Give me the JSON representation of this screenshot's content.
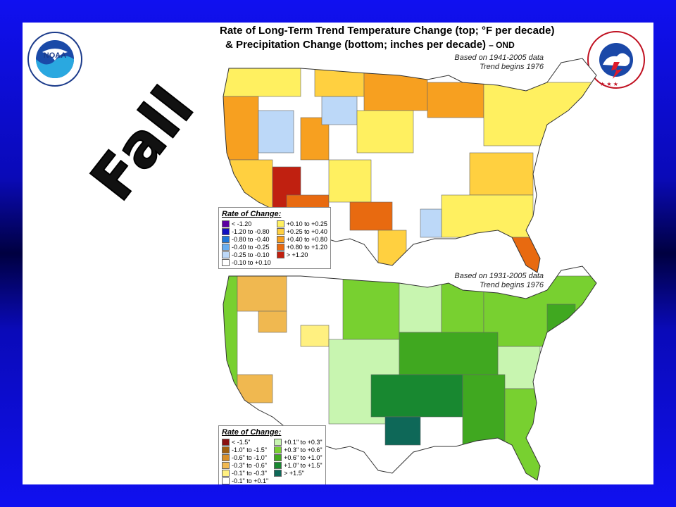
{
  "title_line1": "Rate of Long-Term Trend Temperature Change (top; °F per decade)",
  "title_line2": "&  Precipitation Change (bottom; inches per decade)",
  "title_suffix": "– OND",
  "side_label": "Fall",
  "logos": {
    "noaa": {
      "center_text": "NOAA",
      "ring_top": "NATIONAL OCEANIC AND ATMOSPHERIC ADMINISTRATION",
      "ring_bottom": "U.S. DEPARTMENT OF COMMERCE"
    },
    "nws": {
      "ring_text": "NATIONAL WEATHER SERVICE"
    }
  },
  "temperature_map": {
    "basis_line1": "Based on 1941-2005 data",
    "basis_line2": "Trend begins 1976",
    "legend_title": "Rate of Change:",
    "legend_left": [
      {
        "label": "< -1.20",
        "color": "#5a00a0"
      },
      {
        "label": "-1.20 to -0.80",
        "color": "#1010c0"
      },
      {
        "label": "-0.80 to -0.40",
        "color": "#1e78d8"
      },
      {
        "label": "-0.40 to -0.25",
        "color": "#68aef0"
      },
      {
        "label": "-0.25 to -0.10",
        "color": "#bcd8f8"
      },
      {
        "label": "-0.10 to +0.10",
        "color": "#ffffff"
      }
    ],
    "legend_right": [
      {
        "label": "+0.10 to +0.25",
        "color": "#fff060"
      },
      {
        "label": "+0.25 to +0.40",
        "color": "#ffd040"
      },
      {
        "label": "+0.40 to +0.80",
        "color": "#f7a020"
      },
      {
        "label": "+0.80 to +1.20",
        "color": "#e86a10"
      },
      {
        "label": "> +1.20",
        "color": "#c02010"
      }
    ]
  },
  "precipitation_map": {
    "basis_line1": "Based on 1931-2005 data",
    "basis_line2": "Trend begins 1976",
    "legend_title": "Rate of Change:",
    "legend_left": [
      {
        "label": "< -1.5\"",
        "color": "#8a1010"
      },
      {
        "label": "-1.0\" to -1.5\"",
        "color": "#a06010"
      },
      {
        "label": "-0.6\" to -1.0\"",
        "color": "#d8902a"
      },
      {
        "label": "-0.3\" to -0.6\"",
        "color": "#f0b850"
      },
      {
        "label": "-0.1\" to -0.3\"",
        "color": "#fff080"
      },
      {
        "label": "-0.1\" to +0.1\"",
        "color": "#ffffff"
      }
    ],
    "legend_right": [
      {
        "label": "+0.1\" to +0.3\"",
        "color": "#c8f5b0"
      },
      {
        "label": "+0.3\" to +0.6\"",
        "color": "#78d030"
      },
      {
        "label": "+0.6\" to +1.0\"",
        "color": "#40a820"
      },
      {
        "label": "+1.0\" to +1.5\"",
        "color": "#188830"
      },
      {
        "label": "> +1.5\"",
        "color": "#0e6858"
      }
    ]
  }
}
